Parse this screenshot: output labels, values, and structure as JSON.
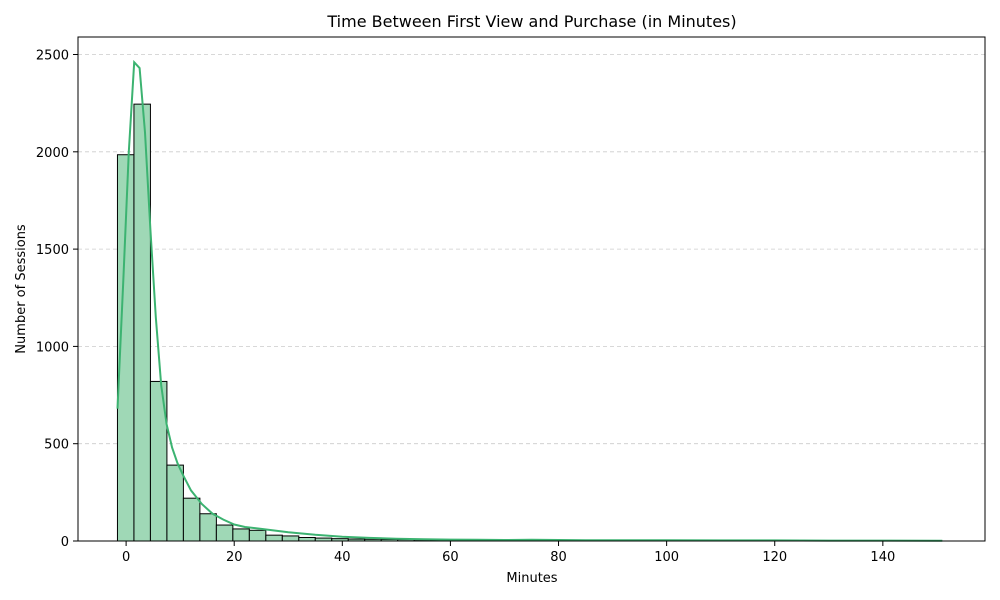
{
  "chart_data": {
    "type": "histogram",
    "title": "Time Between First View and Purchase (in Minutes)",
    "xlabel": "Minutes",
    "ylabel": "Number of Sessions",
    "xlim": [
      -8.9,
      158.9
    ],
    "ylim": [
      0,
      2590
    ],
    "xticks": [
      0,
      20,
      40,
      60,
      80,
      100,
      120,
      140
    ],
    "yticks": [
      0,
      500,
      1000,
      1500,
      2000,
      2500
    ],
    "grid": {
      "axis": "y",
      "style": "dashed"
    },
    "bar_color": "#9fd8b6",
    "bar_edge_color": "#000000",
    "kde_color": "#3cb371",
    "bin_start": -1.6,
    "bin_width": 3.05,
    "counts": [
      1985,
      2245,
      820,
      390,
      220,
      140,
      82,
      62,
      55,
      30,
      26,
      18,
      15,
      12,
      10,
      9,
      8,
      7,
      6,
      5,
      5,
      4,
      4,
      3,
      3,
      3,
      3,
      3,
      3,
      2,
      2,
      2,
      2,
      2,
      2,
      2,
      2,
      2,
      2,
      2,
      2,
      1,
      1,
      1,
      1,
      1,
      1,
      1,
      1,
      1
    ],
    "kde": {
      "x": [
        -1.6,
        -0.5,
        0.5,
        1.5,
        2.5,
        3.5,
        4.5,
        5.5,
        6.5,
        7.5,
        8.5,
        9.5,
        10.5,
        12,
        14,
        16,
        18,
        20,
        22,
        25,
        30,
        35,
        40,
        45,
        50,
        55,
        60,
        65,
        70,
        75,
        80,
        85,
        90,
        95,
        100,
        110,
        120,
        130,
        140,
        151
      ],
      "y": [
        680,
        1350,
        2000,
        2460,
        2430,
        2100,
        1600,
        1150,
        800,
        600,
        480,
        400,
        340,
        260,
        190,
        140,
        110,
        85,
        72,
        62,
        45,
        32,
        22,
        16,
        12,
        9,
        7,
        6,
        5,
        6,
        5,
        4,
        4,
        4,
        4,
        3,
        3,
        2,
        2,
        1
      ]
    }
  }
}
